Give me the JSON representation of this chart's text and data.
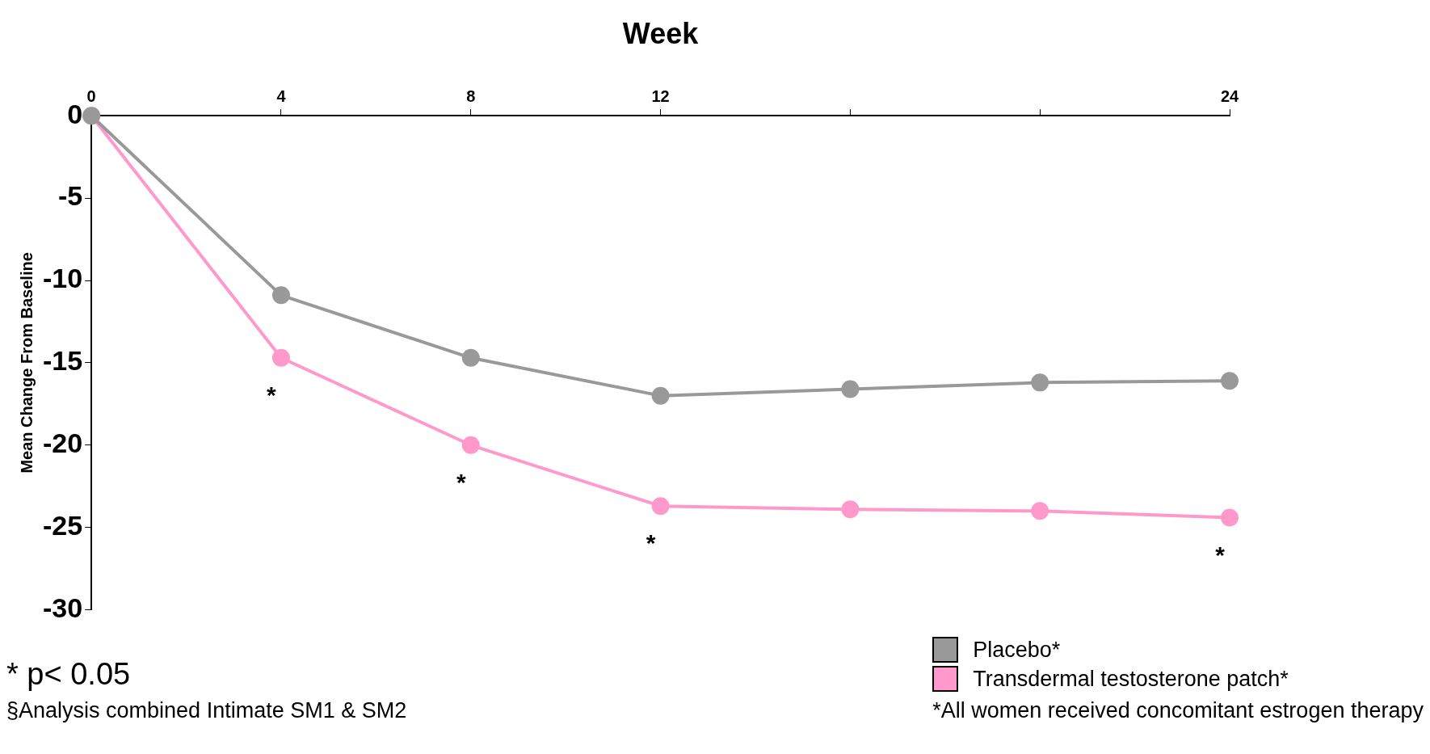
{
  "chart_data": {
    "type": "line",
    "xlabel": "Week",
    "ylabel": "Mean Change From Baseline",
    "x": [
      0,
      4,
      8,
      12,
      16,
      20,
      24
    ],
    "series": [
      {
        "name": "Placebo*",
        "color": "#999999",
        "values": [
          0,
          -10.9,
          -14.7,
          -17.0,
          -16.6,
          -16.2,
          -16.1
        ]
      },
      {
        "name": "Transdermal testosterone patch*",
        "color": "#ff99cc",
        "values": [
          0,
          -14.7,
          -20.0,
          -23.7,
          -23.9,
          -24.0,
          -24.4
        ]
      }
    ],
    "xlim": [
      0,
      24
    ],
    "xticks": [
      0,
      4,
      8,
      12,
      {
        "value": 16,
        "label": null
      },
      {
        "value": 20,
        "label": null
      },
      24
    ],
    "ylim": [
      -30,
      0
    ],
    "yticks": [
      -30,
      -25,
      -20,
      -15,
      -10,
      -5,
      0
    ],
    "grid": false,
    "legend": "bottom right",
    "marker": "circle",
    "line_style": "solid",
    "annotations": [
      {
        "text": "*",
        "x": 4,
        "y": -14.7
      },
      {
        "text": "*",
        "x": 8,
        "y": -20.0
      },
      {
        "text": "*",
        "x": 12,
        "y": -23.7
      },
      {
        "text": "*",
        "x": 24,
        "y": -24.4
      },
      "* p< 0.05",
      "§Analysis combined Intimate SM1 & SM2",
      "*All women received concomitant estrogen therapy"
    ]
  }
}
